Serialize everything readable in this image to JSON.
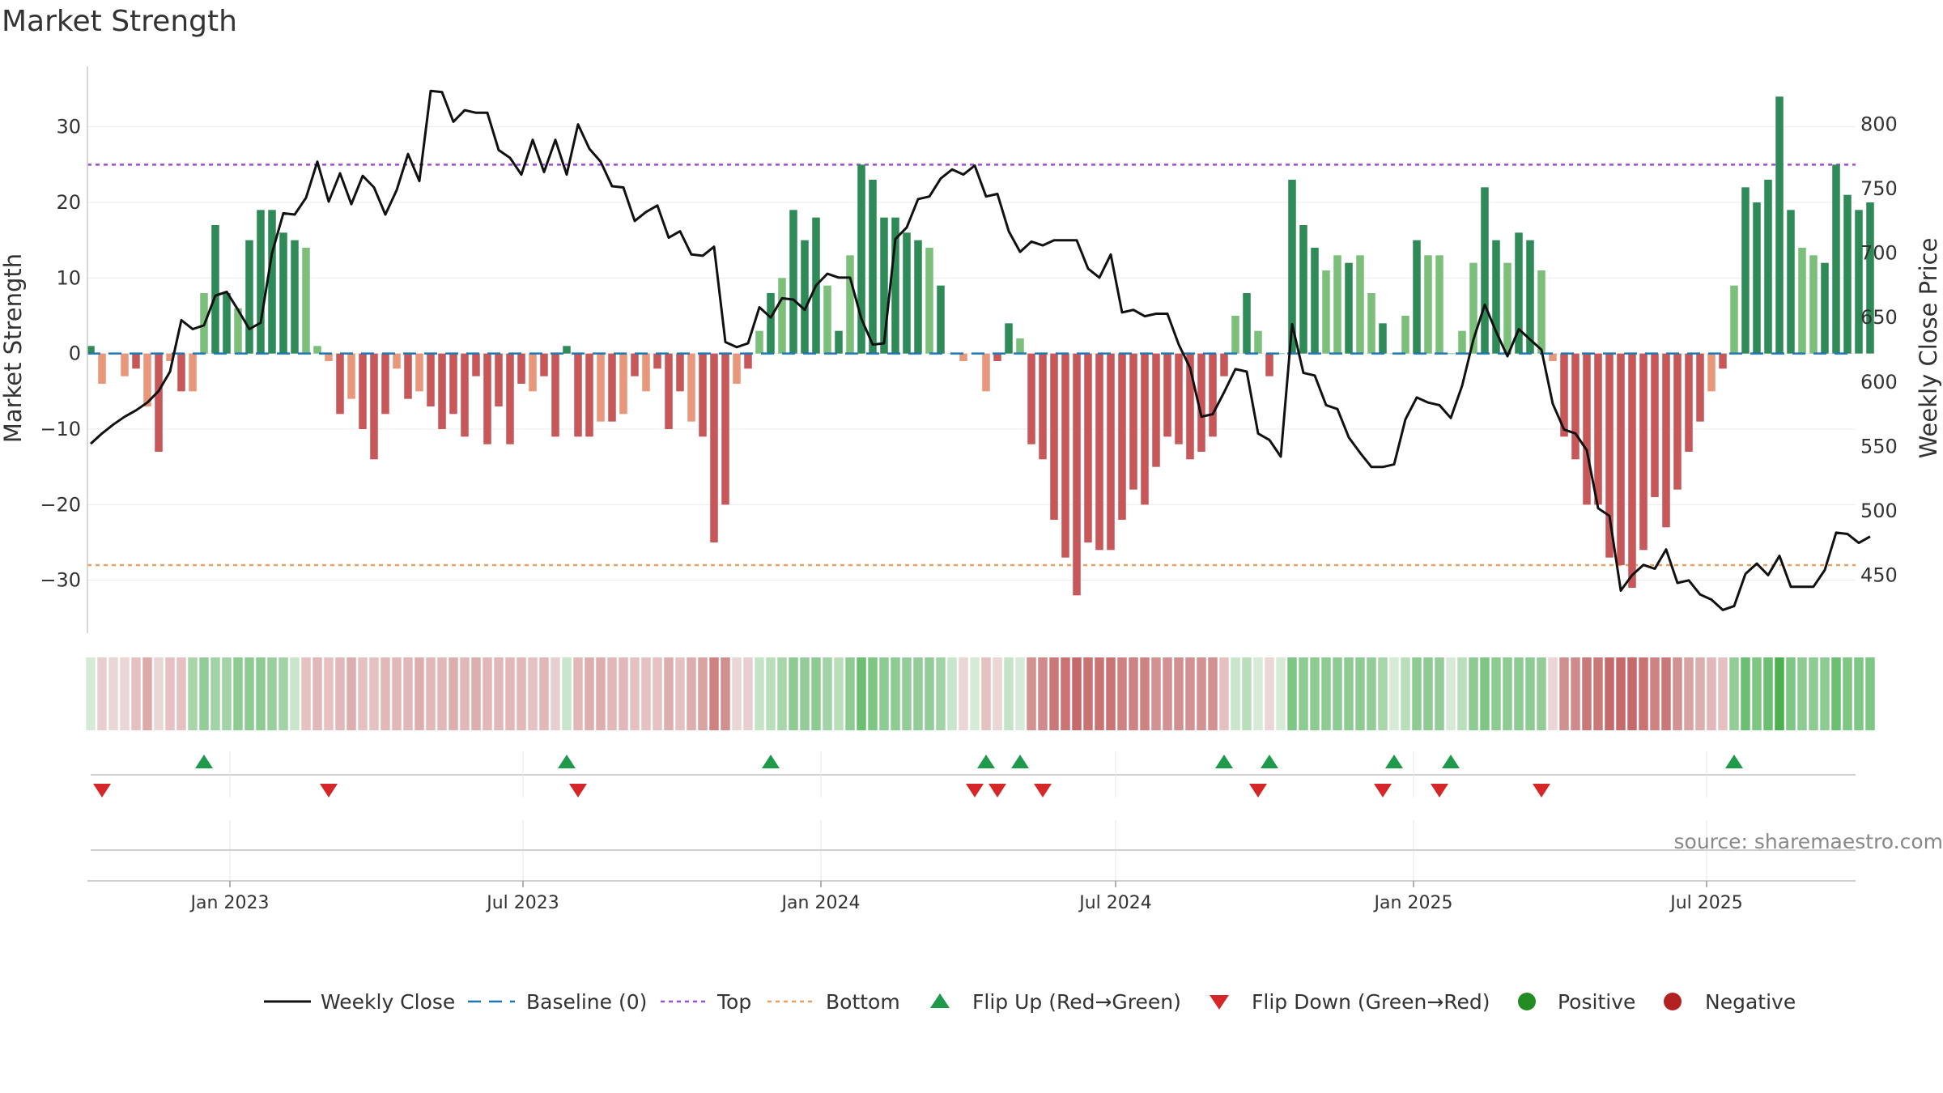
{
  "chart_data": {
    "type": "bar",
    "title": "Market Strength",
    "ylabel": "Market Strength",
    "y2label": "Weekly Close Price",
    "ylim": [
      -37,
      38
    ],
    "y2lim": [
      405,
      845
    ],
    "yticks": [
      "30",
      "20",
      "10",
      "0",
      "−10",
      "−20",
      "−30"
    ],
    "y2ticks": [
      "800",
      "750",
      "700",
      "650",
      "600",
      "550",
      "500",
      "450"
    ],
    "top_level": 25,
    "bottom_level": -28,
    "x_start": "2022-10-05",
    "x_end": "2025-10-01",
    "xticks": [
      {
        "label": "Jan 2023",
        "date": "2023-01-01"
      },
      {
        "label": "Jul 2023",
        "date": "2023-07-01"
      },
      {
        "label": "Jan 2024",
        "date": "2024-01-01"
      },
      {
        "label": "Jul 2024",
        "date": "2024-07-01"
      },
      {
        "label": "Jan 2025",
        "date": "2025-01-01"
      },
      {
        "label": "Jul 2025",
        "date": "2025-07-01"
      }
    ],
    "first_week": "2022-10-07",
    "strength": [
      1,
      -4,
      0,
      -3,
      -2,
      -7,
      -13,
      -1,
      -5,
      -5,
      8,
      17,
      8,
      6,
      15,
      19,
      19,
      16,
      15,
      14,
      1,
      -1,
      -8,
      -6,
      -10,
      -14,
      -8,
      -2,
      -6,
      -5,
      -7,
      -10,
      -8,
      -11,
      -3,
      -12,
      -7,
      -12,
      -4,
      -5,
      -3,
      -11,
      1,
      -11,
      -11,
      -9,
      -9,
      -8,
      -3,
      -5,
      -2,
      -10,
      -5,
      -9,
      -11,
      -25,
      -20,
      -4,
      -2,
      3,
      8,
      10,
      19,
      15,
      18,
      9,
      3,
      13,
      25,
      23,
      18,
      18,
      16,
      15,
      14,
      9,
      0,
      -1,
      0,
      -5,
      -1,
      4,
      2,
      -12,
      -14,
      -22,
      -27,
      -32,
      -25,
      -26,
      -26,
      -22,
      -18,
      -20,
      -15,
      -11,
      -12,
      -14,
      -13,
      -11,
      -3,
      5,
      8,
      3,
      -3,
      0,
      23,
      17,
      14,
      11,
      13,
      12,
      13,
      8,
      4,
      0,
      5,
      15,
      13,
      13,
      0,
      3,
      12,
      22,
      15,
      12,
      16,
      15,
      11,
      -1,
      -11,
      -14,
      -20,
      -20,
      -27,
      -28,
      -31,
      -26,
      -19,
      -23,
      -18,
      -13,
      -9,
      -5,
      -2,
      9,
      22,
      20,
      23,
      34,
      19,
      14,
      13,
      12,
      25,
      21,
      19,
      20
    ],
    "close": [
      552,
      560,
      567,
      573,
      578,
      584,
      593,
      608,
      648,
      641,
      644,
      667,
      670,
      656,
      641,
      646,
      700,
      731,
      730,
      743,
      771,
      740,
      762,
      738,
      760,
      751,
      730,
      749,
      777,
      756,
      826,
      825,
      802,
      811,
      809,
      809,
      780,
      774,
      761,
      788,
      763,
      788,
      761,
      800,
      781,
      771,
      752,
      751,
      725,
      732,
      737,
      712,
      717,
      699,
      698,
      705,
      631,
      627,
      630,
      658,
      650,
      665,
      664,
      656,
      675,
      684,
      681,
      681,
      649,
      629,
      630,
      711,
      720,
      742,
      744,
      758,
      765,
      761,
      768,
      744,
      746,
      717,
      701,
      709,
      706,
      710,
      710,
      710,
      688,
      681,
      699,
      654,
      656,
      651,
      653,
      653,
      629,
      611,
      573,
      575,
      592,
      610,
      608,
      560,
      555,
      542,
      645,
      607,
      605,
      582,
      579,
      557,
      545,
      534,
      534,
      536,
      571,
      588,
      584,
      582,
      572,
      597,
      633,
      660,
      639,
      620,
      641,
      633,
      625,
      583,
      563,
      560,
      547,
      502,
      496,
      438,
      450,
      458,
      455,
      470,
      444,
      446,
      435,
      431,
      423,
      426,
      451,
      459,
      450,
      465,
      441,
      441,
      441,
      454,
      483,
      482,
      475,
      480
    ]
  },
  "strip": {
    "colors": [
      "#d7ead8",
      "#e8cfcf",
      "#ebd6d6",
      "#ebd6d6",
      "#e6c1c1",
      "#ddaaaa",
      "#ebd6d6",
      "#e6c1c1",
      "#e6c1c1",
      "#a8d5aa",
      "#93cc98",
      "#a2d3a6",
      "#a2d3a6",
      "#8ecb93",
      "#8ecb93",
      "#8ecb93",
      "#99ce9d",
      "#a2d3a6",
      "#c9e5cb",
      "#e6c1c1",
      "#e2b7b7",
      "#e6c1c1",
      "#e2b7b7",
      "#dcaeae",
      "#e6c1c1",
      "#e6c1c1",
      "#e2b7b7",
      "#e2b7b7",
      "#e2b7b7",
      "#dcaeae",
      "#e2b7b7",
      "#e2b7b7",
      "#dcaeae",
      "#e2b7b7",
      "#dcaeae",
      "#e2b7b7",
      "#e2b7b7",
      "#e2b7b7",
      "#e2b7b7",
      "#e6c1c1",
      "#e2b7b7",
      "#e8cfcf",
      "#c9e5cb",
      "#e2b7b7",
      "#dcaeae",
      "#dcaeae",
      "#e2b7b7",
      "#e2b7b7",
      "#e6c1c1",
      "#e6c1c1",
      "#e6c1c1",
      "#dcaeae",
      "#e6c1c1",
      "#dcaeae",
      "#d9a3a3",
      "#cf8282",
      "#d09090",
      "#ebd6d6",
      "#e8cfcf",
      "#c5e3c7",
      "#b9deba",
      "#a8d5aa",
      "#8ecb93",
      "#93cc98",
      "#8ecb93",
      "#a2d3a6",
      "#b9deba",
      "#8ecb93",
      "#6cbe73",
      "#7dc683",
      "#8ecb93",
      "#8ecb93",
      "#93cc98",
      "#93cc98",
      "#93cc98",
      "#a2d3a6",
      "#c9e5cb",
      "#ebd6d6",
      "#d7ead8",
      "#e6c1c1",
      "#ebd6d6",
      "#c5e3c7",
      "#d7ead8",
      "#d29292",
      "#cf8b8b",
      "#c97979",
      "#c97373",
      "#c46a6a",
      "#c97373",
      "#c97373",
      "#c97373",
      "#cf8282",
      "#cf8282",
      "#cf8282",
      "#d29292",
      "#d29292",
      "#d09090",
      "#d29292",
      "#d29292",
      "#d29292",
      "#e6c1c1",
      "#c9e5cb",
      "#b9deba",
      "#d7ead8",
      "#ebd6d6",
      "#d7ead8",
      "#7dc683",
      "#8ecb93",
      "#8ecb93",
      "#8ecb93",
      "#8ecb93",
      "#8ecb93",
      "#8ecb93",
      "#93cc98",
      "#a8d5aa",
      "#d7ead8",
      "#b9deba",
      "#8ecb93",
      "#8ecb93",
      "#93cc98",
      "#d7ead8",
      "#b9deba",
      "#8ecb93",
      "#7dc683",
      "#8ecb93",
      "#8ecb93",
      "#8ecb93",
      "#8ecb93",
      "#93cc98",
      "#ebd6d6",
      "#d09090",
      "#cf8b8b",
      "#c97979",
      "#c97979",
      "#c46a6a",
      "#c46a6a",
      "#c46a6a",
      "#c97373",
      "#cf8282",
      "#c97979",
      "#d29292",
      "#d9a3a3",
      "#dcaeae",
      "#e2b7b7",
      "#e6c1c1",
      "#93cc98",
      "#6cbe73",
      "#7dc683",
      "#6cbe73",
      "#4caf50",
      "#7dc683",
      "#8ecb93",
      "#8ecb93",
      "#8ecb93",
      "#6cbe73",
      "#7dc683",
      "#7dc683",
      "#7dc683"
    ]
  },
  "flips": {
    "up": [
      10,
      42,
      60,
      79,
      82,
      100,
      104,
      115,
      120,
      145
    ],
    "down": [
      1,
      21,
      43,
      78,
      80,
      84,
      103,
      114,
      119,
      128
    ]
  },
  "colors": {
    "pos_dark": "#2e8b57",
    "pos_light": "#7bbf7b",
    "neg_dark": "#c8575a",
    "neg_light": "#e8977a",
    "close_line": "#111111",
    "top_line": "#9c4dd6",
    "bottom_line": "#e8a060",
    "baseline": "#1f77b4",
    "flip_up": "#1e9a4a",
    "flip_down": "#d62728",
    "positive_dot": "#228b22",
    "negative_dot": "#b22222"
  },
  "legend": [
    {
      "key": "close",
      "label": "Weekly Close"
    },
    {
      "key": "baseline",
      "label": "Baseline (0)"
    },
    {
      "key": "top",
      "label": "Top"
    },
    {
      "key": "bottom",
      "label": "Bottom"
    },
    {
      "key": "flip_up",
      "label": "Flip Up (Red→Green)"
    },
    {
      "key": "flip_down",
      "label": "Flip Down (Green→Red)"
    },
    {
      "key": "positive",
      "label": "Positive"
    },
    {
      "key": "negative",
      "label": "Negative"
    }
  ],
  "source": "source: sharemaestro.com"
}
